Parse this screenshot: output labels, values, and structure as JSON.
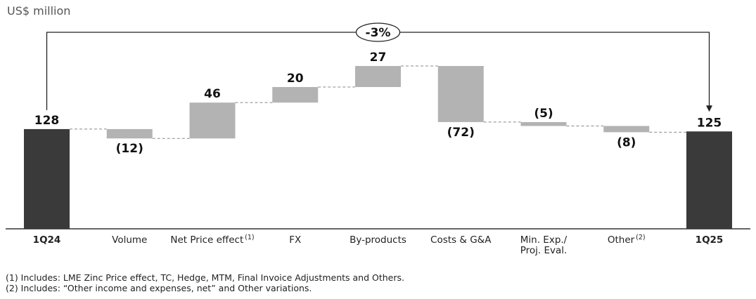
{
  "unit_label": "US$ million",
  "chart_data": {
    "type": "waterfall",
    "title": "",
    "ylabel": "US$ million",
    "change_label": "-3%",
    "categories": [
      {
        "label": "1Q24",
        "bold": true
      },
      {
        "label": "Volume"
      },
      {
        "label": "Net Price effect",
        "sup": "(1)"
      },
      {
        "label": "FX"
      },
      {
        "label": "By-products"
      },
      {
        "label": "Costs & G&A"
      },
      {
        "label": "Min. Exp./ Proj. Eval.",
        "lines": [
          "Min. Exp./",
          "Proj. Eval."
        ]
      },
      {
        "label": "Other",
        "sup": "(2)"
      },
      {
        "label": "1Q25",
        "bold": true
      }
    ],
    "values": [
      128,
      -12,
      46,
      20,
      27,
      -72,
      -5,
      -8,
      125
    ],
    "value_labels": [
      "128",
      "(12)",
      "46",
      "20",
      "27",
      "(72)",
      "(5)",
      "(8)",
      "125"
    ],
    "bar_kinds": [
      "total",
      "delta",
      "delta",
      "delta",
      "delta",
      "delta",
      "delta",
      "delta",
      "total"
    ],
    "colors": {
      "total": "#3a3a3a",
      "delta": "#b3b3b3",
      "connector": "#888888",
      "axis": "#333333"
    }
  },
  "footnotes": [
    "(1) Includes: LME Zinc Price effect, TC, Hedge, MTM, Final Invoice Adjustments and Others.",
    "(2) Includes: “Other income and expenses, net” and Other variations."
  ]
}
